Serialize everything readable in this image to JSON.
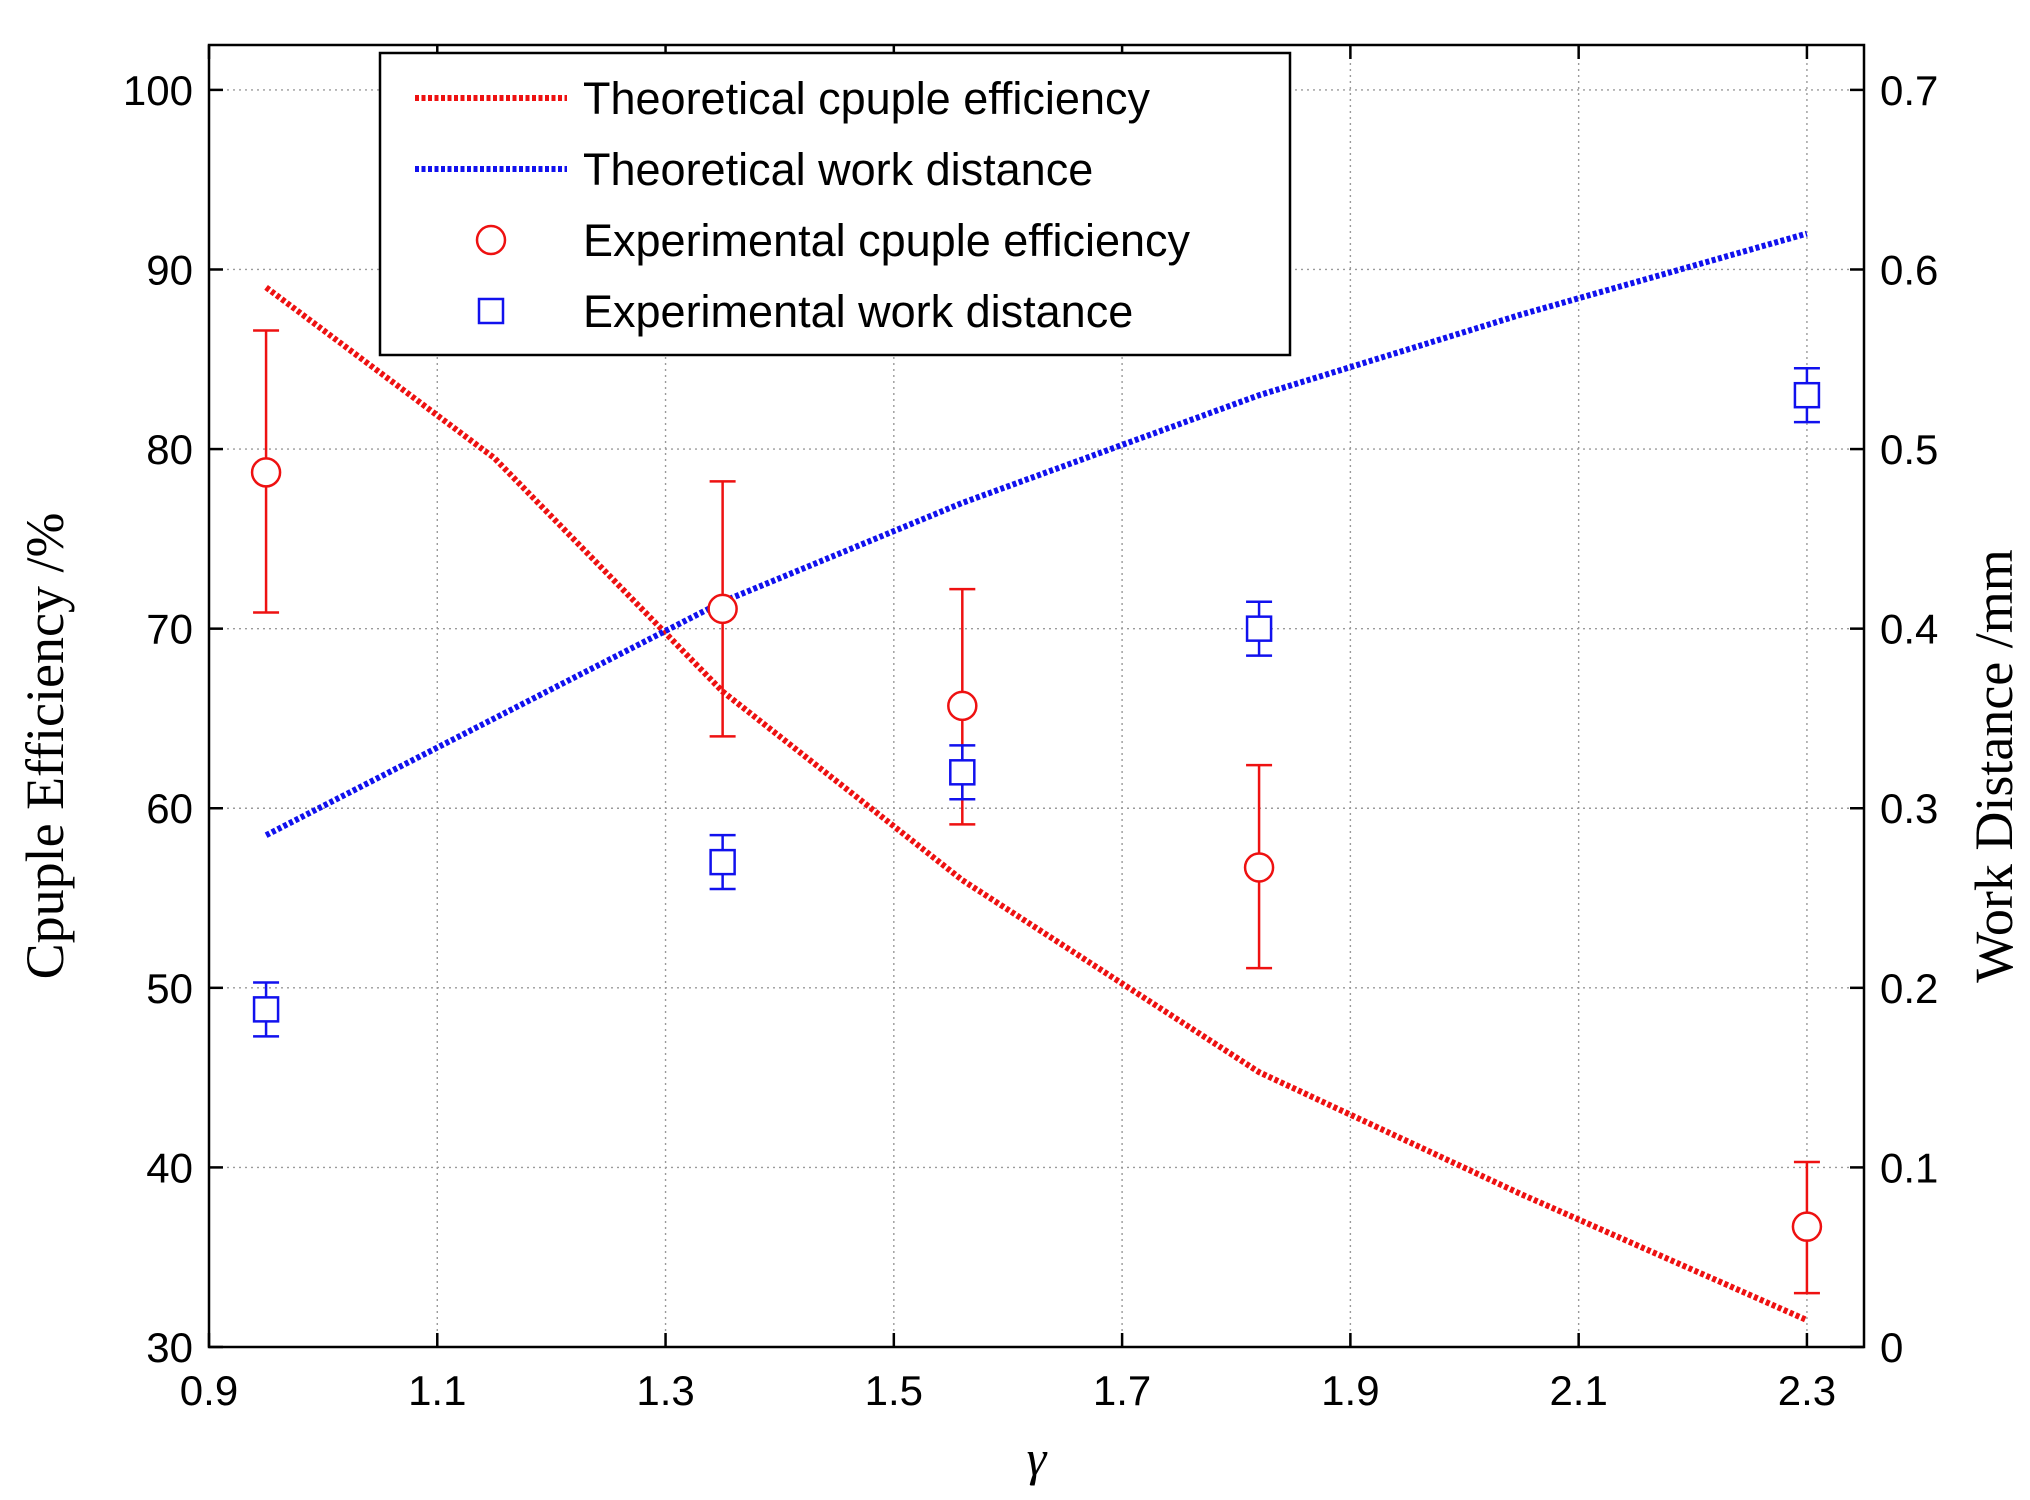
{
  "chart_data": {
    "type": "line",
    "title": "",
    "xlabel": "γ",
    "ylabel_left": "Cpuple Efficiency /%",
    "ylabel_right": "Work Distance /mm",
    "xlim": [
      0.9,
      2.35
    ],
    "ylim_left": [
      30,
      102.5
    ],
    "ylim_right": [
      0,
      0.725
    ],
    "grid": true,
    "legend_position": "top-center",
    "x_ticks": [
      0.9,
      1.1,
      1.3,
      1.5,
      1.7,
      1.9,
      2.1,
      2.3
    ],
    "x_tick_labels": [
      "0.9",
      "1.1",
      "1.3",
      "1.5",
      "1.7",
      "1.9",
      "2.1",
      "2.3"
    ],
    "y_left_ticks": [
      30,
      40,
      50,
      60,
      70,
      80,
      90,
      100
    ],
    "y_left_tick_labels": [
      "30",
      "40",
      "50",
      "60",
      "70",
      "80",
      "90",
      "100"
    ],
    "y_right_ticks": [
      0,
      0.1,
      0.2,
      0.3,
      0.4,
      0.5,
      0.6,
      0.7
    ],
    "y_right_tick_labels": [
      "0",
      "0.1",
      "0.2",
      "0.3",
      "0.4",
      "0.5",
      "0.6",
      "0.7"
    ],
    "series": [
      {
        "name": "Theoretical cpuple efficiency",
        "kind": "line",
        "axis": "left",
        "color": "#ee1111",
        "x": [
          0.95,
          1.15,
          1.35,
          1.56,
          1.82,
          2.05,
          2.3
        ],
        "y": [
          89,
          79.5,
          66.5,
          56,
          45.3,
          38.5,
          31.5
        ]
      },
      {
        "name": "Theoretical work distance",
        "kind": "line",
        "axis": "right",
        "color": "#1111ee",
        "x": [
          0.95,
          1.15,
          1.35,
          1.56,
          1.82,
          2.05,
          2.3
        ],
        "y": [
          0.285,
          0.35,
          0.415,
          0.47,
          0.53,
          0.575,
          0.62
        ]
      },
      {
        "name": "Experimental cpuple efficiency",
        "kind": "scatter",
        "marker": "circle",
        "axis": "left",
        "color": "#ee1111",
        "x": [
          0.95,
          1.35,
          1.56,
          1.82,
          2.3
        ],
        "y": [
          78.7,
          71.1,
          65.7,
          56.7,
          36.7
        ],
        "err_low": [
          70.9,
          64.0,
          59.1,
          51.1,
          33.0
        ],
        "err_high": [
          86.6,
          78.2,
          72.2,
          62.4,
          40.3
        ]
      },
      {
        "name": "Experimental work distance",
        "kind": "scatter",
        "marker": "square",
        "axis": "right",
        "color": "#1111ee",
        "x": [
          0.95,
          1.35,
          1.56,
          1.82,
          2.3
        ],
        "y": [
          0.188,
          0.27,
          0.32,
          0.4,
          0.53
        ],
        "err_low": [
          0.173,
          0.255,
          0.305,
          0.385,
          0.515
        ],
        "err_high": [
          0.203,
          0.285,
          0.335,
          0.415,
          0.545
        ]
      }
    ]
  }
}
